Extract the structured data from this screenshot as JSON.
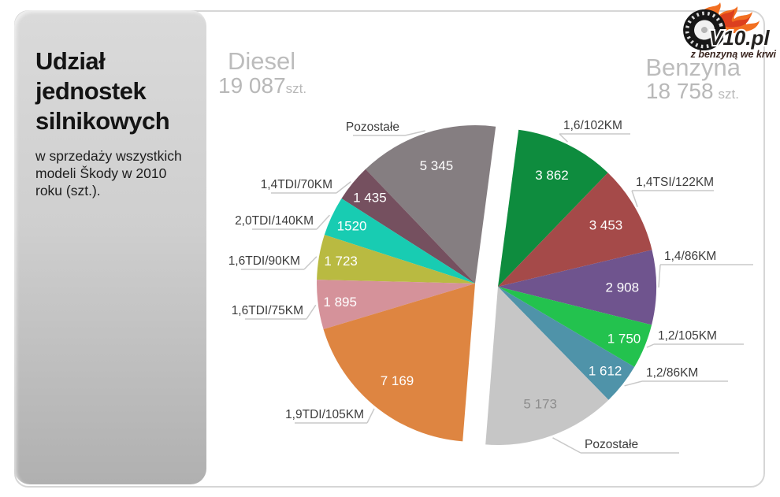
{
  "sidebar": {
    "title": "Udział jednostek silnikowych",
    "subtitle": "w sprzedaży wszystkich modeli Škody w 2010 roku (szt.)."
  },
  "headers": {
    "diesel": {
      "label": "Diesel",
      "count": "19 087",
      "unit": "szt."
    },
    "benzyna": {
      "label": "Benzyna",
      "count": "18 758",
      "unit": "szt."
    }
  },
  "logo": {
    "brand": "V10.pl",
    "tagline": "z benzyną we krwi"
  },
  "chart_data": {
    "type": "pie",
    "title": "Udział jednostek silnikowych w sprzedaży wszystkich modeli Škody w 2010 roku (szt.)",
    "unit": "szt.",
    "legend": "none",
    "halves": [
      {
        "name": "Diesel",
        "total": 19087,
        "slices": [
          {
            "label": "Pozostałe",
            "value": 5345,
            "value_label": "5 345",
            "color": "#857e81",
            "value_color": "#ffffff"
          },
          {
            "label": "1,4TDI/70KM",
            "value": 1435,
            "value_label": "1 435",
            "color": "#75505f",
            "value_color": "#ffffff"
          },
          {
            "label": "2,0TDI/140KM",
            "value": 1520,
            "value_label": "1520",
            "color": "#18ccb2",
            "value_color": "#ffffff"
          },
          {
            "label": "1,6TDI/90KM",
            "value": 1723,
            "value_label": "1 723",
            "color": "#b9ba41",
            "value_color": "#ffffff"
          },
          {
            "label": "1,6TDI/75KM",
            "value": 1895,
            "value_label": "1 895",
            "color": "#d5929a",
            "value_color": "#ffffff"
          },
          {
            "label": "1,9TDI/105KM",
            "value": 7169,
            "value_label": "7 169",
            "color": "#de8541",
            "value_color": "#ffffff"
          }
        ]
      },
      {
        "name": "Benzyna",
        "total": 18758,
        "slices": [
          {
            "label": "1,6/102KM",
            "value": 3862,
            "value_label": "3 862",
            "color": "#0e8c3e",
            "value_color": "#ffffff"
          },
          {
            "label": "1,4TSI/122KM",
            "value": 3453,
            "value_label": "3 453",
            "color": "#a54a49",
            "value_color": "#ffffff"
          },
          {
            "label": "1,4/86KM",
            "value": 2908,
            "value_label": "2 908",
            "color": "#6f548e",
            "value_color": "#ffffff"
          },
          {
            "label": "1,2/105KM",
            "value": 1750,
            "value_label": "1 750",
            "color": "#23c24e",
            "value_color": "#ffffff"
          },
          {
            "label": "1,2/86KM",
            "value": 1612,
            "value_label": "1 612",
            "color": "#4f93a9",
            "value_color": "#ffffff"
          },
          {
            "label": "Pozostałe",
            "value": 5173,
            "value_label": "5 173",
            "color": "#c6c6c6",
            "value_color": "#8d8d8d"
          }
        ]
      }
    ]
  }
}
